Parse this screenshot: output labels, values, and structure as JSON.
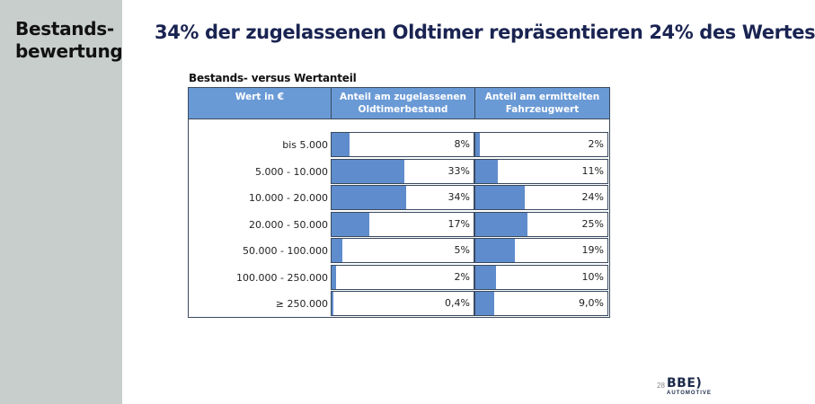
{
  "sidebar": {
    "title_line1": "Bestands-",
    "title_line2": "bewertung",
    "bg_color": "#c8cecc"
  },
  "header": {
    "title": "34% der zugelassenen Oldtimer repräsentieren 24% des Wertes",
    "title_color": "#1a2452"
  },
  "table": {
    "caption": "Bestands- versus Wertanteil",
    "columns": [
      "Wert in €",
      "Anteil am zugelassenen Oldtimerbestand",
      "Anteil am ermittelten Fahrzeugwert"
    ],
    "header_color": "#6a9ad6",
    "bar_color": "#5f8ccc",
    "rows": [
      {
        "label": "bis 5.000",
        "a": "8%",
        "b": "2%"
      },
      {
        "label": "5.000 - 10.000",
        "a": "33%",
        "b": "11%"
      },
      {
        "label": "10.000 - 20.000",
        "a": "34%",
        "b": "24%"
      },
      {
        "label": "20.000 - 50.000",
        "a": "17%",
        "b": "25%"
      },
      {
        "label": "50.000 - 100.000",
        "a": "5%",
        "b": "19%"
      },
      {
        "label": "100.000 - 250.000",
        "a": "2%",
        "b": "10%"
      },
      {
        "label": "≥ 250.000",
        "a": "0,4%",
        "b": "9,0%"
      }
    ]
  },
  "chart_data": {
    "type": "table",
    "title": "Bestands- versus Wertanteil",
    "categories": [
      "bis 5.000",
      "5.000 - 10.000",
      "10.000 - 20.000",
      "20.000 - 50.000",
      "50.000 - 100.000",
      "100.000 - 250.000",
      "≥ 250.000"
    ],
    "series": [
      {
        "name": "Anteil am zugelassenen Oldtimerbestand",
        "values": [
          8,
          33,
          34,
          17,
          5,
          2,
          0.4
        ]
      },
      {
        "name": "Anteil am ermittelten Fahrzeugwert",
        "values": [
          2,
          11,
          24,
          25,
          19,
          10,
          9.0
        ]
      }
    ],
    "xlabel": "Wert in €",
    "ylabel": "%"
  },
  "footer": {
    "page_number": "28",
    "logo_main": "BBE)",
    "logo_sub": "AUTOMOTIVE"
  }
}
